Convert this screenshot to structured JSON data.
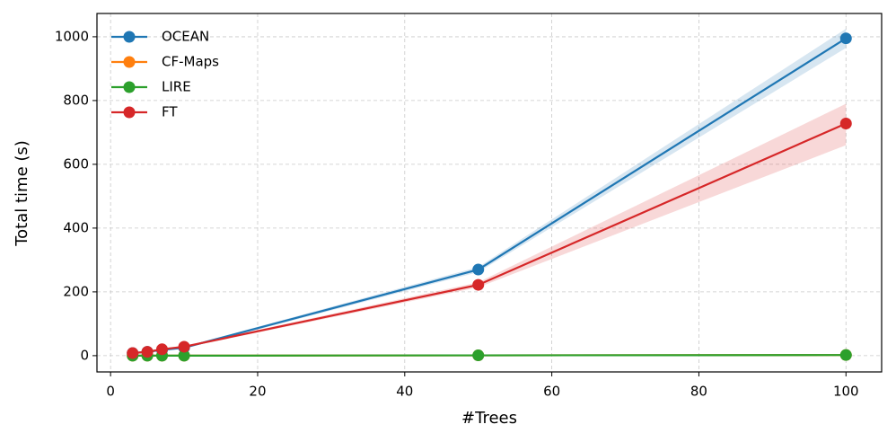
{
  "chart_data": {
    "type": "line",
    "x_label": "#Trees",
    "y_label": "Total time (s)",
    "x": [
      3,
      5,
      7,
      10,
      50,
      100
    ],
    "series": [
      {
        "name": "OCEAN",
        "color": "#1f77b4",
        "values": [
          8,
          12,
          18,
          25,
          270,
          995
        ],
        "lower": [
          6,
          10,
          16,
          22,
          262,
          965
        ],
        "upper": [
          10,
          14,
          20,
          28,
          278,
          1025
        ]
      },
      {
        "name": "CF-Maps",
        "color": "#ff7f0e",
        "values": [
          0,
          0,
          0,
          0,
          1,
          2
        ],
        "lower": [
          0,
          0,
          0,
          0,
          1,
          1
        ],
        "upper": [
          0,
          0,
          0,
          0,
          1,
          3
        ]
      },
      {
        "name": "LIRE",
        "color": "#2ca02c",
        "values": [
          0,
          0,
          0,
          0,
          1,
          2
        ],
        "lower": [
          0,
          0,
          0,
          0,
          1,
          1
        ],
        "upper": [
          0,
          0,
          0,
          0,
          1,
          3
        ]
      },
      {
        "name": "FT",
        "color": "#d62728",
        "values": [
          8,
          12,
          20,
          28,
          222,
          728
        ],
        "lower": [
          6,
          10,
          17,
          25,
          214,
          660
        ],
        "upper": [
          10,
          14,
          23,
          31,
          230,
          790
        ]
      }
    ],
    "xlim": [
      -1.85,
      104.85
    ],
    "ylim": [
      -51,
      1073
    ],
    "xticks": [
      0,
      20,
      40,
      60,
      80,
      100
    ],
    "yticks": [
      0,
      200,
      400,
      600,
      800,
      1000
    ],
    "grid": true,
    "legend": "upper-left"
  }
}
